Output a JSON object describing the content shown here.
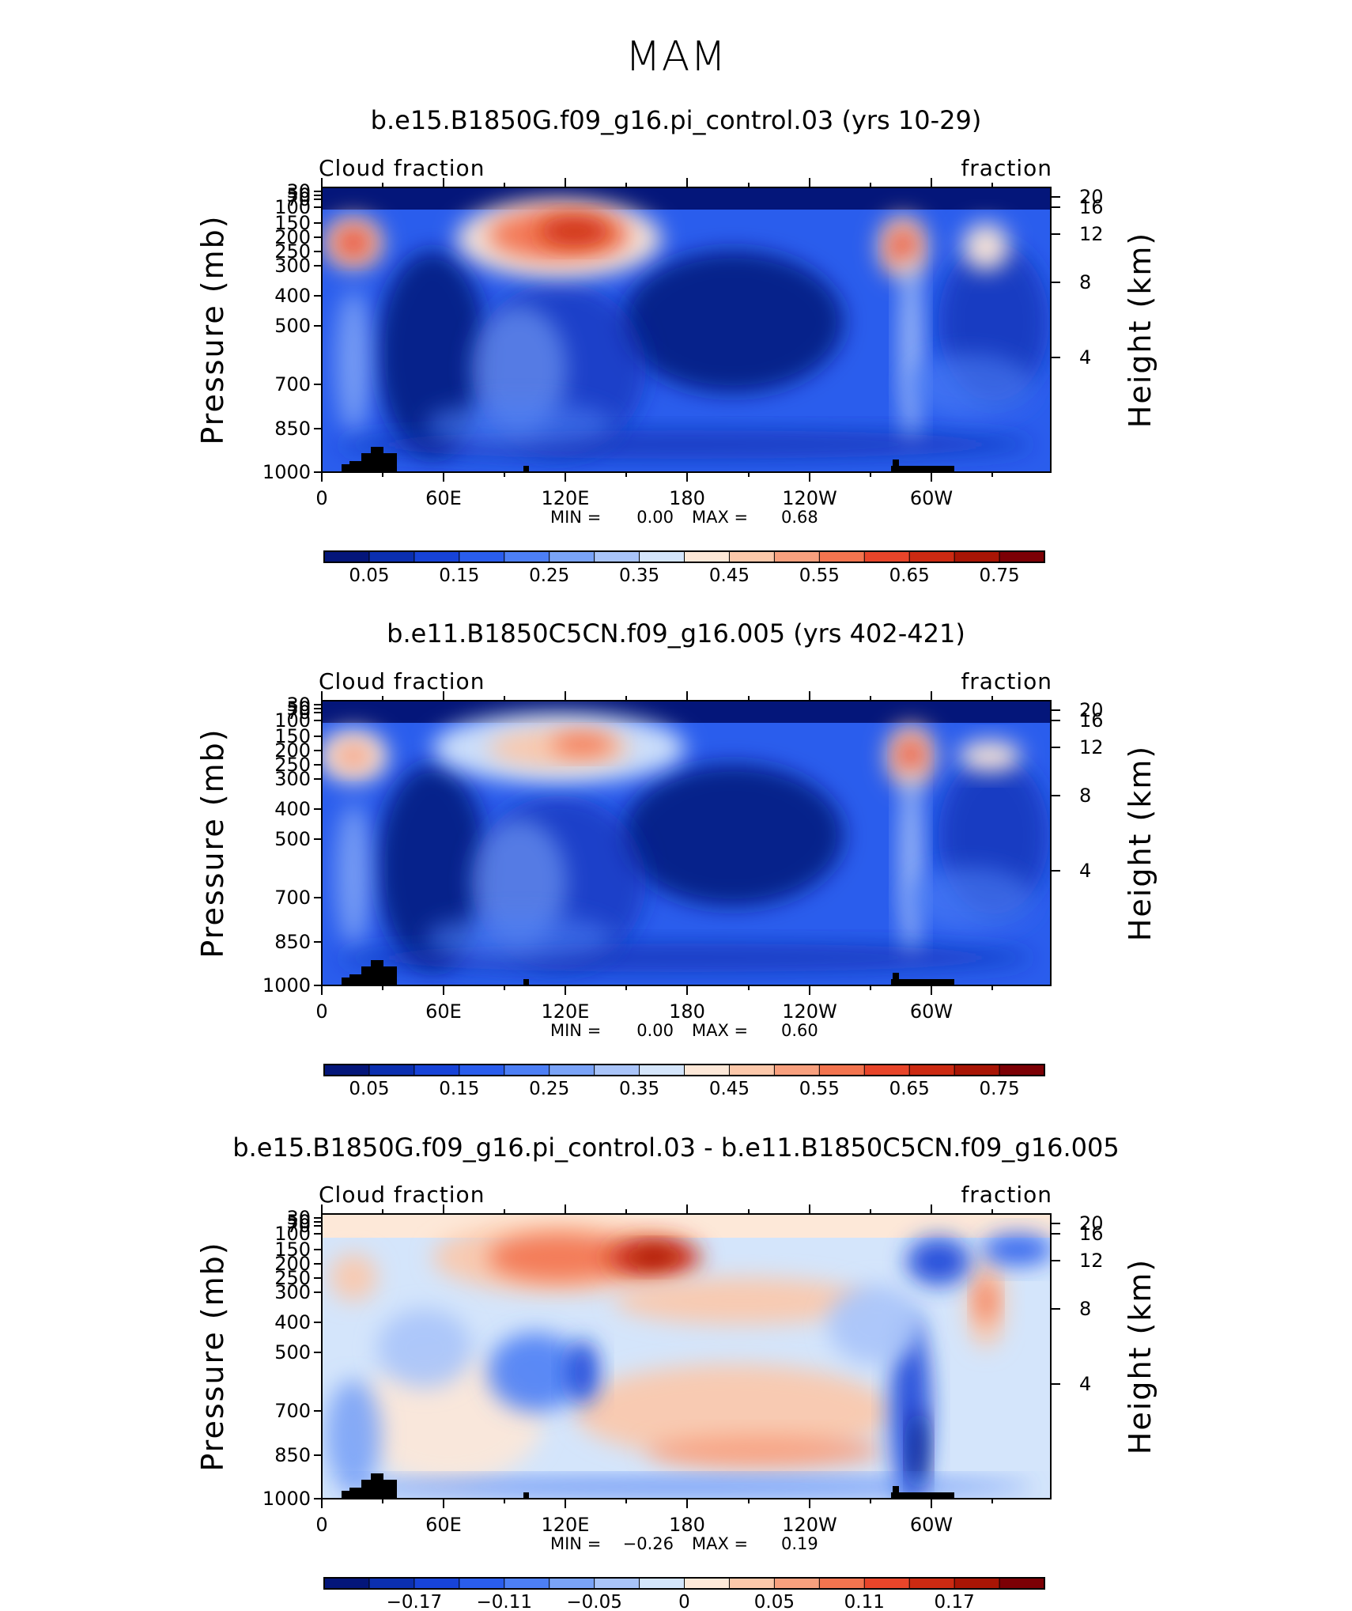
{
  "page": {
    "title": "MAM"
  },
  "colors": {
    "fraction_scale": [
      "#04167a",
      "#0b2fb0",
      "#1743d8",
      "#2a5ded",
      "#4d7ff5",
      "#7aa3f7",
      "#a9c4f9",
      "#d4e5fb",
      "#fde8d8",
      "#fcc8aa",
      "#f8a07e",
      "#f3744f",
      "#e8452a",
      "#cc2a12",
      "#a81505",
      "#7c0005"
    ],
    "diff_scale": [
      "#04167a",
      "#0b2fb0",
      "#1743d8",
      "#2a5ded",
      "#4d7ff5",
      "#7aa3f7",
      "#a9c4f9",
      "#d4e5fb",
      "#fde8d8",
      "#fcc8aa",
      "#f8a07e",
      "#f3744f",
      "#e8452a",
      "#cc2a12",
      "#a81505",
      "#7c0005"
    ],
    "land_mask": "#000000"
  },
  "chart_data": [
    {
      "type": "heatmap",
      "title": "b.e15.B1850G.f09_g16.pi_control.03 (yrs 10-29)",
      "left_string": "Cloud fraction",
      "right_string": "fraction",
      "ylabel": "Pressure (mb)",
      "ylabel_right": "Height (km)",
      "x_tick_labels": [
        "0",
        "60E",
        "120E",
        "180",
        "120W",
        "60W"
      ],
      "y_tick_labels": [
        "30",
        "50",
        "70",
        "100",
        "150",
        "200",
        "250",
        "300",
        "400",
        "500",
        "700",
        "850",
        "1000"
      ],
      "y_right_tick_labels": [
        "20",
        "16",
        "12",
        "8",
        "4"
      ],
      "min_label": "MIN  =",
      "min_value": "0.00",
      "max_label": "MAX  =",
      "max_value": "0.68",
      "colorbar_labels": [
        "0.05",
        "0.15",
        "0.25",
        "0.35",
        "0.45",
        "0.55",
        "0.65",
        "0.75"
      ]
    },
    {
      "type": "heatmap",
      "title": "b.e11.B1850C5CN.f09_g16.005 (yrs 402-421)",
      "left_string": "Cloud fraction",
      "right_string": "fraction",
      "ylabel": "Pressure (mb)",
      "ylabel_right": "Height (km)",
      "x_tick_labels": [
        "0",
        "60E",
        "120E",
        "180",
        "120W",
        "60W"
      ],
      "y_tick_labels": [
        "30",
        "50",
        "70",
        "100",
        "150",
        "200",
        "250",
        "300",
        "400",
        "500",
        "700",
        "850",
        "1000"
      ],
      "y_right_tick_labels": [
        "20",
        "16",
        "12",
        "8",
        "4"
      ],
      "min_label": "MIN  =",
      "min_value": "0.00",
      "max_label": "MAX  =",
      "max_value": "0.60",
      "colorbar_labels": [
        "0.05",
        "0.15",
        "0.25",
        "0.35",
        "0.45",
        "0.55",
        "0.65",
        "0.75"
      ]
    },
    {
      "type": "heatmap",
      "title": "b.e15.B1850G.f09_g16.pi_control.03 - b.e11.B1850C5CN.f09_g16.005",
      "left_string": "Cloud fraction",
      "right_string": "fraction",
      "ylabel": "Pressure (mb)",
      "ylabel_right": "Height (km)",
      "x_tick_labels": [
        "0",
        "60E",
        "120E",
        "180",
        "120W",
        "60W"
      ],
      "y_tick_labels": [
        "30",
        "50",
        "70",
        "100",
        "150",
        "200",
        "250",
        "300",
        "400",
        "500",
        "700",
        "850",
        "1000"
      ],
      "y_right_tick_labels": [
        "20",
        "16",
        "12",
        "8",
        "4"
      ],
      "min_label": "MIN  =",
      "min_value": "−0.26",
      "max_label": "MAX  =",
      "max_value": "0.19",
      "colorbar_labels": [
        "−0.17",
        "−0.11",
        "−0.05",
        "0",
        "0.05",
        "0.11",
        "0.17"
      ]
    }
  ]
}
